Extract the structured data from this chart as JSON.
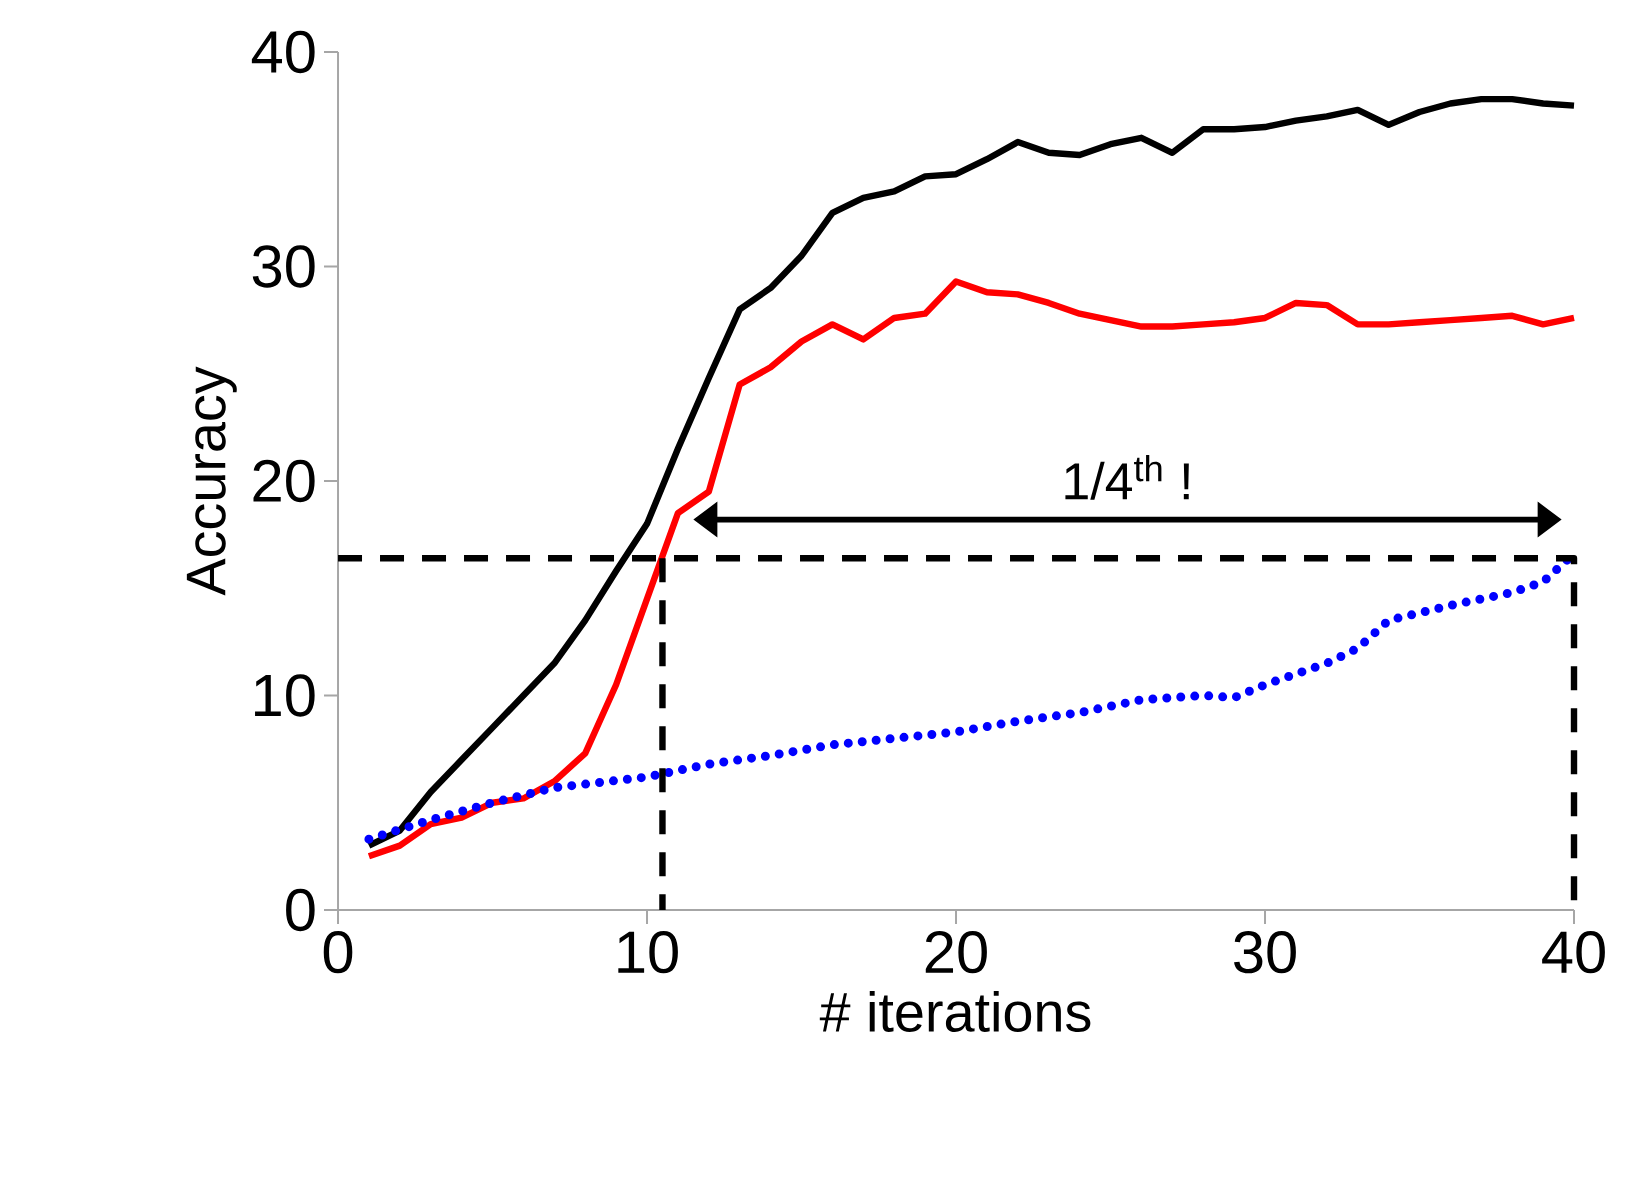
{
  "chart_data": {
    "type": "line",
    "xlabel": "# iterations",
    "ylabel": "Accuracy",
    "xlim": [
      0,
      40
    ],
    "ylim": [
      0,
      40
    ],
    "xticks": [
      0,
      10,
      20,
      30,
      40
    ],
    "yticks": [
      0,
      10,
      20,
      30,
      40
    ],
    "grid": false,
    "annotations": [
      "1/4$^{th}$ !"
    ],
    "series": [
      {
        "color": "#000000",
        "line_style": "solid",
        "x": [
          1,
          2,
          3,
          4,
          5,
          6,
          7,
          8,
          9,
          10,
          11,
          12,
          13,
          14,
          15,
          16,
          17,
          18,
          19,
          20,
          21,
          22,
          23,
          24,
          25,
          26,
          27,
          28,
          29,
          30,
          31,
          32,
          33,
          34,
          35,
          36,
          37,
          38,
          39,
          40
        ],
        "values": [
          3,
          3.7,
          5.5,
          7,
          8.5,
          10,
          11.5,
          13.5,
          15.8,
          18,
          21.5,
          24.8,
          28,
          29,
          30.5,
          32.5,
          33.2,
          33.5,
          34.2,
          34.3,
          35,
          35.8,
          35.3,
          35.2,
          35.7,
          36,
          35.3,
          36.4,
          36.4,
          36.5,
          36.8,
          37,
          37.3,
          36.6,
          37.2,
          37.6,
          37.8,
          37.8,
          37.6,
          37.5
        ]
      },
      {
        "color": "#ff0000",
        "line_style": "solid",
        "x": [
          1,
          2,
          3,
          4,
          5,
          6,
          7,
          8,
          9,
          10,
          11,
          12,
          13,
          14,
          15,
          16,
          17,
          18,
          19,
          20,
          21,
          22,
          23,
          24,
          25,
          26,
          27,
          28,
          29,
          30,
          31,
          32,
          33,
          34,
          35,
          36,
          37,
          38,
          39,
          40
        ],
        "values": [
          2.5,
          3,
          4,
          4.3,
          5,
          5.2,
          6,
          7.3,
          10.5,
          14.5,
          18.5,
          19.5,
          24.5,
          25.3,
          26.5,
          27.3,
          26.6,
          27.6,
          27.8,
          29.3,
          28.8,
          28.7,
          28.3,
          27.8,
          27.5,
          27.2,
          27.2,
          27.3,
          27.4,
          27.6,
          28.3,
          28.2,
          27.3,
          27.3,
          27.4,
          27.5,
          27.6,
          27.7,
          27.3,
          27.6
        ]
      },
      {
        "color": "#0000ff",
        "line_style": "dotted",
        "x": [
          1,
          3,
          5,
          7,
          10,
          12,
          14,
          16,
          18,
          20,
          22,
          24,
          26,
          28,
          29,
          30,
          32,
          33,
          34,
          36,
          38,
          39,
          40
        ],
        "values": [
          3.3,
          4.2,
          5,
          5.7,
          6.2,
          6.8,
          7.2,
          7.7,
          8.0,
          8.3,
          8.8,
          9.2,
          9.8,
          10.0,
          9.9,
          10.5,
          11.5,
          12.2,
          13.5,
          14.2,
          14.8,
          15.3,
          16.6
        ]
      },
      {
        "color": "#000000",
        "line_style": "dashed",
        "x": [
          0,
          40,
          40
        ],
        "values": [
          16.4,
          16.4,
          0
        ]
      },
      {
        "color": "#000000",
        "line_style": "dashed",
        "x": [
          10.5,
          10.5
        ],
        "values": [
          16.4,
          0
        ]
      }
    ]
  }
}
